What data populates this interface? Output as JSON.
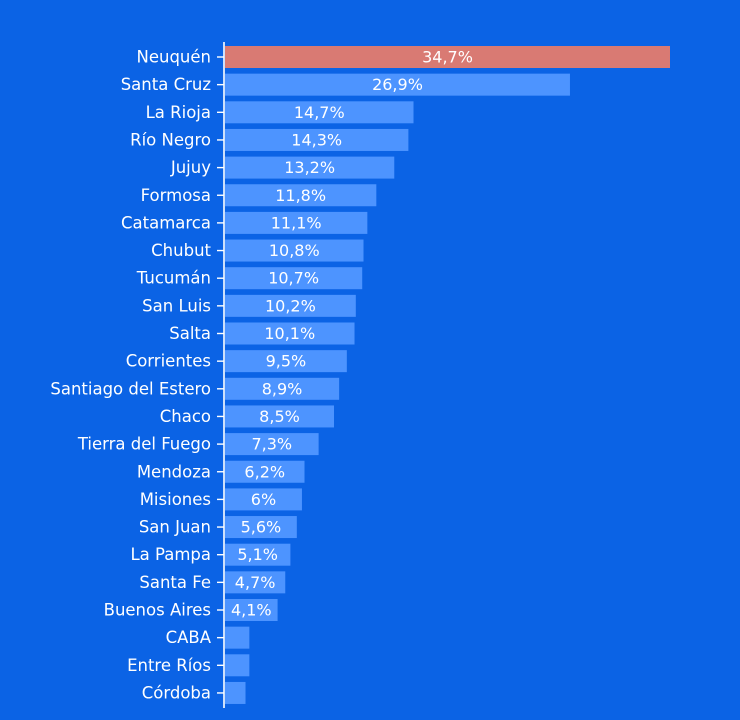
{
  "chart_data": {
    "type": "bar",
    "orientation": "horizontal",
    "categories": [
      "Neuquén",
      "Santa Cruz",
      "La Rioja",
      "Río Negro",
      "Jujuy",
      "Formosa",
      "Catamarca",
      "Chubut",
      "Tucumán",
      "San Luis",
      "Salta",
      "Corrientes",
      "Santiago del Estero",
      "Chaco",
      "Tierra del Fuego",
      "Mendoza",
      "Misiones",
      "San Juan",
      "La Pampa",
      "Santa Fe",
      "Buenos Aires",
      "CABA",
      "Entre Ríos",
      "Córdoba"
    ],
    "values": [
      34.7,
      26.9,
      14.7,
      14.3,
      13.2,
      11.8,
      11.1,
      10.8,
      10.7,
      10.2,
      10.1,
      9.5,
      8.9,
      8.5,
      7.3,
      6.2,
      6,
      5.6,
      5.1,
      4.7,
      4.1,
      1.9,
      1.9,
      1.6
    ],
    "value_labels": [
      "34,7%",
      "26,9%",
      "14,7%",
      "14,3%",
      "13,2%",
      "11,8%",
      "11,1%",
      "10,8%",
      "10,7%",
      "10,2%",
      "10,1%",
      "9,5%",
      "8,9%",
      "8,5%",
      "7,3%",
      "6,2%",
      "6%",
      "5,6%",
      "5,1%",
      "4,7%",
      "4,1%",
      "",
      "",
      ""
    ],
    "xlim": [
      0,
      35
    ],
    "grid": false,
    "legend": "none",
    "highlight_category": "Neuquén",
    "colors": {
      "background": "#0b63e5",
      "bar": "#4d94ff",
      "highlight": "#d97a73",
      "text": "#ffffff"
    }
  }
}
